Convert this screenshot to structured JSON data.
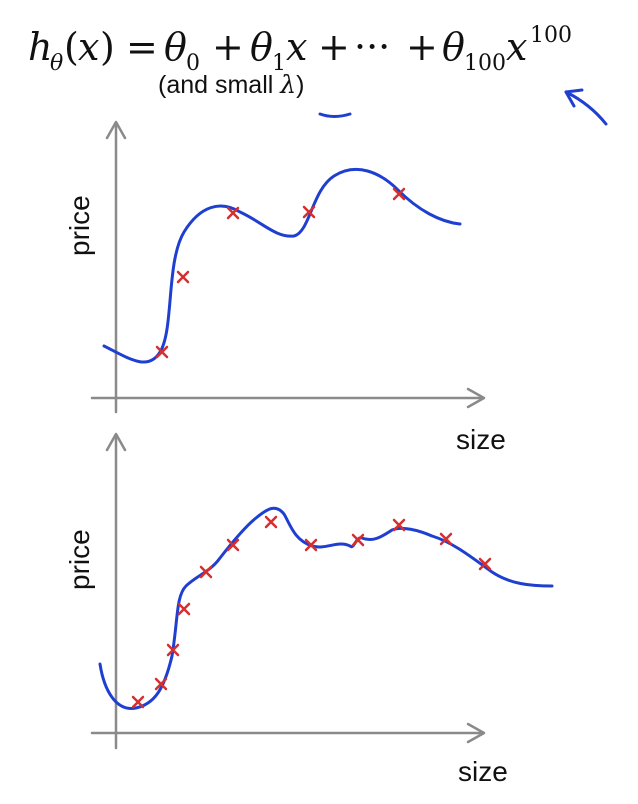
{
  "formula": {
    "h": "h",
    "theta": "θ",
    "x": "x",
    "eq": "=",
    "plus": "+",
    "zero": "0",
    "one": "1",
    "dots": "···",
    "hundred": "100",
    "exp": "100"
  },
  "subtitle": {
    "prefix": "(and small ",
    "lambda": "λ",
    "suffix": ")"
  },
  "annotations": {
    "arrow_color": "#1f3fd1",
    "underline_color": "#1f3fd1"
  },
  "plots": [
    {
      "ylabel": "price",
      "xlabel": "size"
    },
    {
      "ylabel": "price",
      "xlabel": "size"
    }
  ],
  "colors": {
    "curve": "#1f3fd1",
    "marker": "#d62f2f",
    "axis": "#8a8a8a"
  }
}
